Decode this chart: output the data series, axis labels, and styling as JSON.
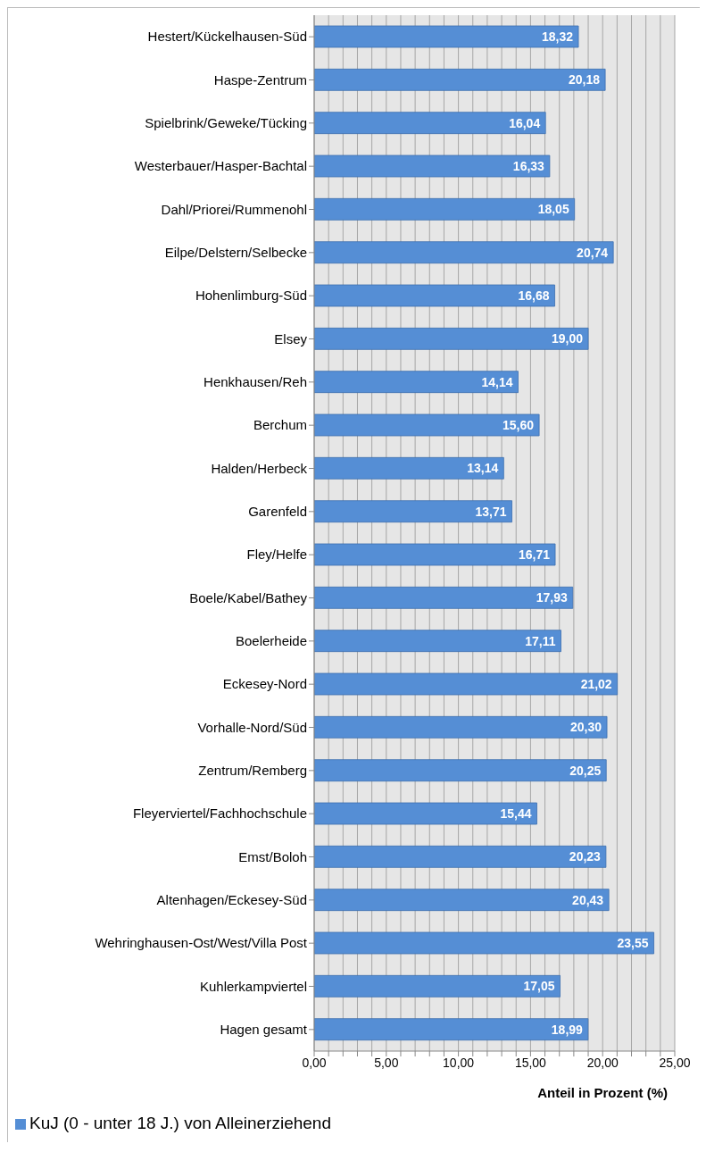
{
  "chart_data": {
    "type": "bar",
    "orientation": "horizontal",
    "categories": [
      "Hestert/Kückelhausen-Süd",
      "Haspe-Zentrum",
      "Spielbrink/Geweke/Tücking",
      "Westerbauer/Hasper-Bachtal",
      "Dahl/Priorei/Rummenohl",
      "Eilpe/Delstern/Selbecke",
      "Hohenlimburg-Süd",
      "Elsey",
      "Henkhausen/Reh",
      "Berchum",
      "Halden/Herbeck",
      "Garenfeld",
      "Fley/Helfe",
      "Boele/Kabel/Bathey",
      "Boelerheide",
      "Eckesey-Nord",
      "Vorhalle-Nord/Süd",
      "Zentrum/Remberg",
      "Fleyerviertel/Fachhochschule",
      "Emst/Boloh",
      "Altenhagen/Eckesey-Süd",
      "Wehringhausen-Ost/West/Villa Post",
      "Kuhlerkampviertel",
      "Hagen gesamt"
    ],
    "series": [
      {
        "name": "KuJ (0 - unter 18 J.) von Alleinerziehend",
        "color": "#558ed5",
        "values": [
          18.32,
          20.18,
          16.04,
          16.33,
          18.05,
          20.74,
          16.68,
          19.0,
          14.14,
          15.6,
          13.14,
          13.71,
          16.71,
          17.93,
          17.11,
          21.02,
          20.3,
          20.25,
          15.44,
          20.23,
          20.43,
          23.55,
          17.05,
          18.99
        ],
        "value_labels": [
          "18,32",
          "20,18",
          "16,04",
          "16,33",
          "18,05",
          "20,74",
          "16,68",
          "19,00",
          "14,14",
          "15,60",
          "13,14",
          "13,71",
          "16,71",
          "17,93",
          "17,11",
          "21,02",
          "20,30",
          "20,25",
          "15,44",
          "20,23",
          "20,43",
          "23,55",
          "17,05",
          "18,99"
        ]
      }
    ],
    "xlabel": "Anteil in Prozent (%)",
    "xlim": [
      0,
      25
    ],
    "xticks": [
      {
        "value": 0,
        "label": "0,00"
      },
      {
        "value": 1,
        "label": null
      },
      {
        "value": 2,
        "label": null
      },
      {
        "value": 3,
        "label": null
      },
      {
        "value": 4,
        "label": null
      },
      {
        "value": 5,
        "label": "5,00"
      },
      {
        "value": 6,
        "label": null
      },
      {
        "value": 7,
        "label": null
      },
      {
        "value": 8,
        "label": null
      },
      {
        "value": 9,
        "label": null
      },
      {
        "value": 10,
        "label": "10,00"
      },
      {
        "value": 11,
        "label": null
      },
      {
        "value": 12,
        "label": null
      },
      {
        "value": 13,
        "label": null
      },
      {
        "value": 14,
        "label": null
      },
      {
        "value": 15,
        "label": "15,00"
      },
      {
        "value": 16,
        "label": null
      },
      {
        "value": 17,
        "label": null
      },
      {
        "value": 18,
        "label": null
      },
      {
        "value": 19,
        "label": null
      },
      {
        "value": 20,
        "label": "20,00"
      },
      {
        "value": 21,
        "label": null
      },
      {
        "value": 22,
        "label": null
      },
      {
        "value": 23,
        "label": null
      },
      {
        "value": 24,
        "label": null
      },
      {
        "value": 25,
        "label": "25,00"
      }
    ],
    "grid": "x",
    "legend": "bottom left"
  }
}
